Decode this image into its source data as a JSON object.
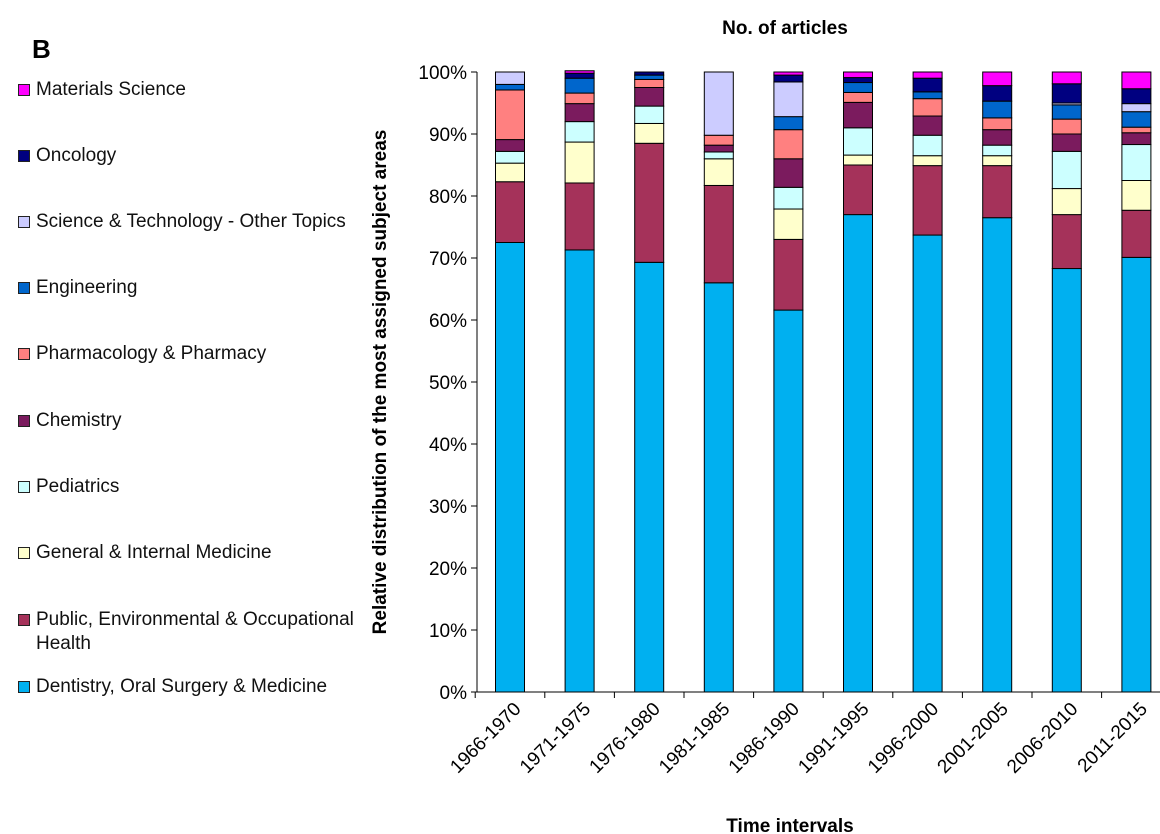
{
  "panel_label": "B",
  "chart_data": {
    "type": "bar",
    "stacked": true,
    "percent_stacked": true,
    "title": "No. of articles",
    "xlabel": "Time intervals",
    "ylabel": "Relative distribution of the most assigned subject areas",
    "ylim": [
      0,
      100
    ],
    "y_ticks": [
      "0%",
      "10%",
      "20%",
      "30%",
      "40%",
      "50%",
      "60%",
      "70%",
      "80%",
      "90%",
      "100%"
    ],
    "grid": false,
    "legend_position": "left",
    "categories": [
      "1966-1970",
      "1971-1975",
      "1976-1980",
      "1981-1985",
      "1986-1990",
      "1991-1995",
      "1996-2000",
      "2001-2005",
      "2006-2010",
      "2011-2015"
    ],
    "series": [
      {
        "name": "Dentistry, Oral Surgery & Medicine",
        "color": "#00b0f0",
        "values": [
          72.5,
          71.3,
          69.3,
          66.0,
          61.6,
          77.0,
          73.7,
          76.5,
          68.3,
          70.1
        ]
      },
      {
        "name": "Public, Environmental & Occupational Health",
        "color": "#a5325a",
        "values": [
          9.8,
          10.8,
          19.2,
          15.7,
          11.4,
          8.0,
          11.2,
          8.4,
          8.7,
          7.6
        ]
      },
      {
        "name": "General & Internal Medicine",
        "color": "#ffffcc",
        "values": [
          3.0,
          6.6,
          3.2,
          4.3,
          4.9,
          1.6,
          1.6,
          1.6,
          4.2,
          4.8
        ]
      },
      {
        "name": "Pediatrics",
        "color": "#ccffff",
        "values": [
          1.9,
          3.3,
          2.8,
          1.1,
          3.5,
          4.4,
          3.3,
          1.7,
          6.0,
          5.8
        ]
      },
      {
        "name": "Chemistry",
        "color": "#7b1b5e",
        "values": [
          1.9,
          2.9,
          3.0,
          1.1,
          4.6,
          4.1,
          3.1,
          2.5,
          2.8,
          1.9
        ]
      },
      {
        "name": "Pharmacology & Pharmacy",
        "color": "#ff8080",
        "values": [
          8.0,
          1.7,
          1.3,
          1.6,
          4.7,
          1.6,
          2.8,
          1.9,
          2.4,
          0.9
        ]
      },
      {
        "name": "Engineering",
        "color": "#0066cc",
        "values": [
          0.9,
          2.4,
          0.7,
          0.0,
          2.1,
          1.6,
          1.1,
          2.7,
          2.3,
          2.5
        ]
      },
      {
        "name": "Science & Technology - Other Topics",
        "color": "#ccccff",
        "values": [
          2.0,
          0.0,
          0.0,
          10.2,
          5.6,
          0.0,
          0.0,
          0.0,
          0.3,
          1.3
        ]
      },
      {
        "name": "Oncology",
        "color": "#000080",
        "values": [
          0.0,
          0.8,
          0.5,
          0.0,
          1.1,
          0.8,
          2.2,
          2.5,
          3.1,
          2.4
        ]
      },
      {
        "name": "Materials Science",
        "color": "#ff00ff",
        "values": [
          0.0,
          0.4,
          0.0,
          0.0,
          0.5,
          0.9,
          1.0,
          2.2,
          1.9,
          2.7
        ]
      }
    ]
  }
}
